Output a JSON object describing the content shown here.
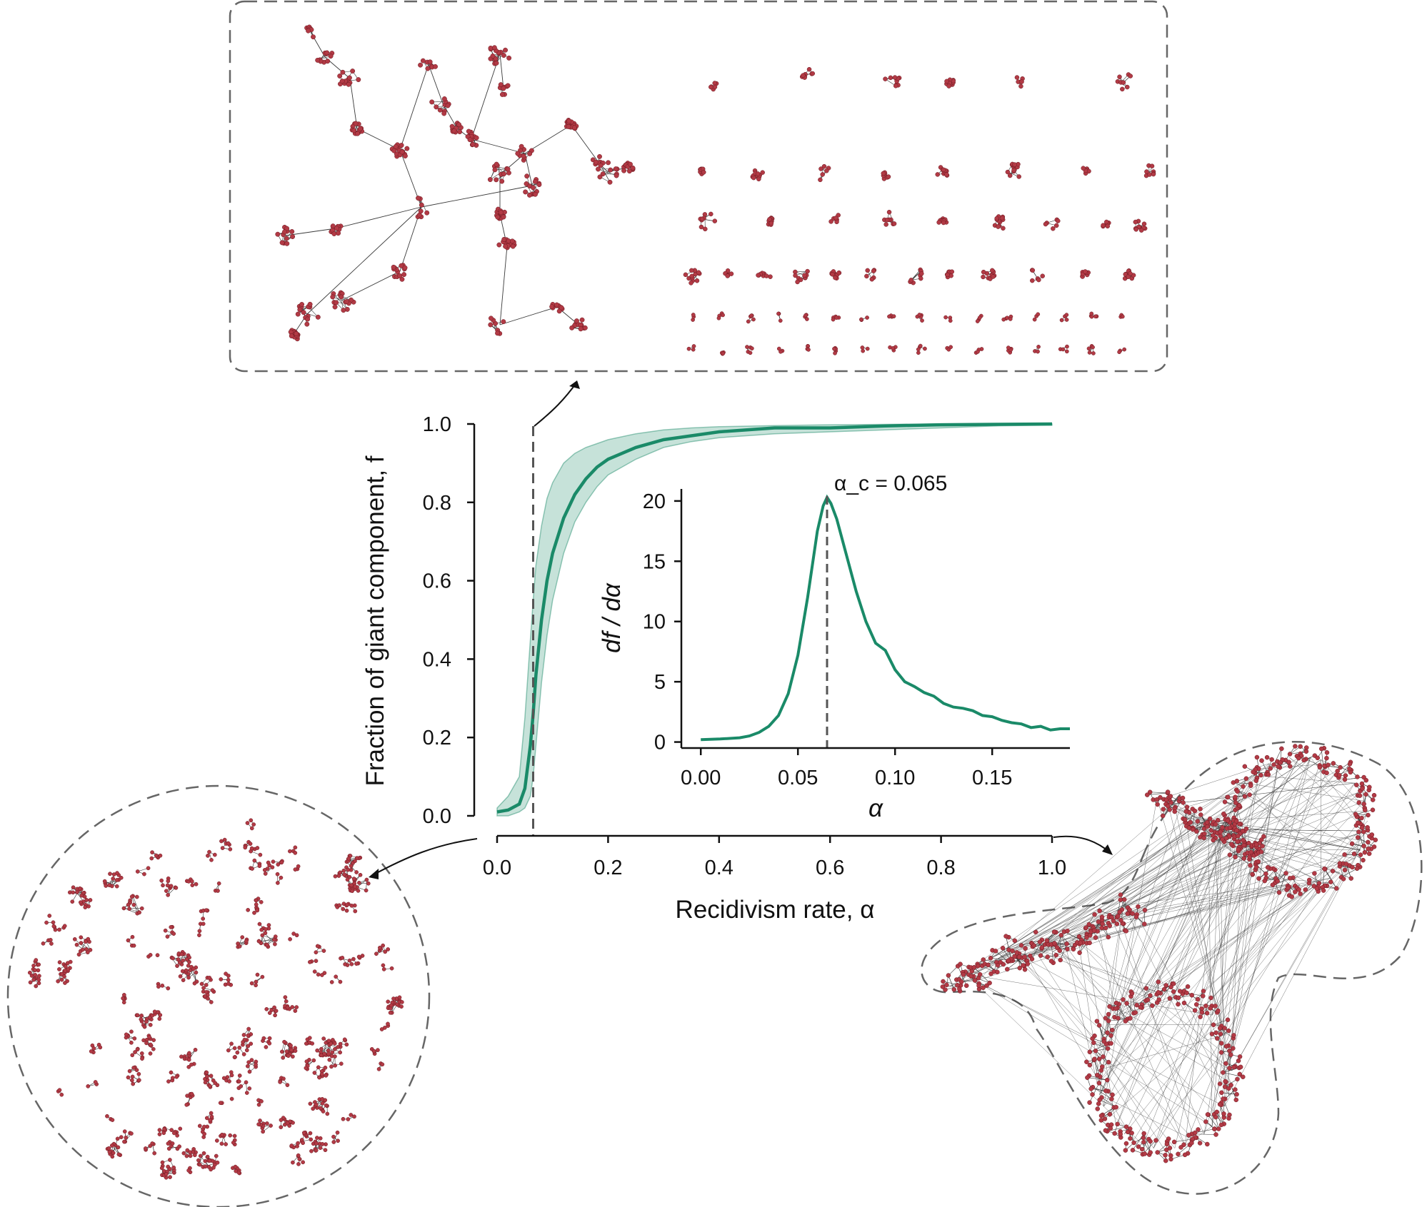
{
  "chart_data": [
    {
      "type": "area",
      "role": "main",
      "xlabel": "Recidivism rate, α",
      "ylabel": "Fraction of giant component, f",
      "xlim": [
        0.0,
        1.0
      ],
      "ylim": [
        0.0,
        1.0
      ],
      "xticks": [
        "0.0",
        "0.2",
        "0.4",
        "0.6",
        "0.8",
        "1.0"
      ],
      "yticks": [
        "0.0",
        "0.2",
        "0.4",
        "0.6",
        "0.8",
        "1.0"
      ],
      "grid": false,
      "line_color": "#1a8a68",
      "band_color": "#1a8a68",
      "marker_x": 0.065,
      "x": [
        0.0,
        0.02,
        0.04,
        0.05,
        0.06,
        0.065,
        0.07,
        0.08,
        0.09,
        0.1,
        0.12,
        0.14,
        0.16,
        0.18,
        0.2,
        0.25,
        0.3,
        0.35,
        0.4,
        0.5,
        0.6,
        0.7,
        0.8,
        0.9,
        1.0
      ],
      "mean": [
        0.01,
        0.015,
        0.03,
        0.07,
        0.18,
        0.26,
        0.36,
        0.5,
        0.6,
        0.67,
        0.76,
        0.82,
        0.86,
        0.89,
        0.91,
        0.94,
        0.96,
        0.97,
        0.98,
        0.99,
        0.99,
        0.995,
        0.998,
        0.999,
        1.0
      ],
      "lower": [
        0.0,
        0.0,
        0.01,
        0.02,
        0.05,
        0.1,
        0.18,
        0.34,
        0.46,
        0.55,
        0.67,
        0.75,
        0.8,
        0.84,
        0.87,
        0.91,
        0.94,
        0.955,
        0.965,
        0.975,
        0.98,
        0.985,
        0.99,
        0.995,
        0.997
      ],
      "upper": [
        0.02,
        0.05,
        0.1,
        0.25,
        0.45,
        0.55,
        0.64,
        0.74,
        0.81,
        0.85,
        0.9,
        0.925,
        0.94,
        0.95,
        0.96,
        0.975,
        0.985,
        0.99,
        0.993,
        0.996,
        0.998,
        0.999,
        1.0,
        1.0,
        1.0
      ]
    },
    {
      "type": "line",
      "role": "inset",
      "xlabel": "α",
      "ylabel": "df / dα",
      "xlim": [
        -0.01,
        0.19
      ],
      "ylim": [
        -0.5,
        21
      ],
      "xticks": [
        "0.00",
        "0.05",
        "0.10",
        "0.15"
      ],
      "yticks": [
        "0",
        "5",
        "10",
        "15",
        "20"
      ],
      "line_color": "#1a8a68",
      "annotation": "α_c = 0.065",
      "annotation_x": 0.065,
      "x": [
        0.0,
        0.01,
        0.02,
        0.025,
        0.03,
        0.035,
        0.04,
        0.045,
        0.05,
        0.055,
        0.06,
        0.063,
        0.065,
        0.067,
        0.07,
        0.075,
        0.08,
        0.085,
        0.09,
        0.095,
        0.1,
        0.105,
        0.11,
        0.115,
        0.12,
        0.125,
        0.13,
        0.135,
        0.14,
        0.145,
        0.15,
        0.155,
        0.16,
        0.165,
        0.17,
        0.175,
        0.18,
        0.185,
        0.19
      ],
      "y": [
        0.2,
        0.25,
        0.35,
        0.5,
        0.8,
        1.3,
        2.2,
        4.0,
        7.2,
        12.0,
        17.5,
        19.6,
        20.3,
        19.8,
        18.5,
        15.5,
        12.5,
        10.0,
        8.2,
        7.6,
        6.0,
        5.0,
        4.6,
        4.1,
        3.8,
        3.2,
        2.9,
        2.8,
        2.6,
        2.2,
        2.1,
        1.8,
        1.6,
        1.5,
        1.2,
        1.3,
        1.0,
        1.1,
        1.1
      ]
    }
  ],
  "colors": {
    "node": "#b23a45",
    "node_edge": "#6b1820",
    "edge": "#3a3a3a",
    "dashed": "#666666"
  }
}
